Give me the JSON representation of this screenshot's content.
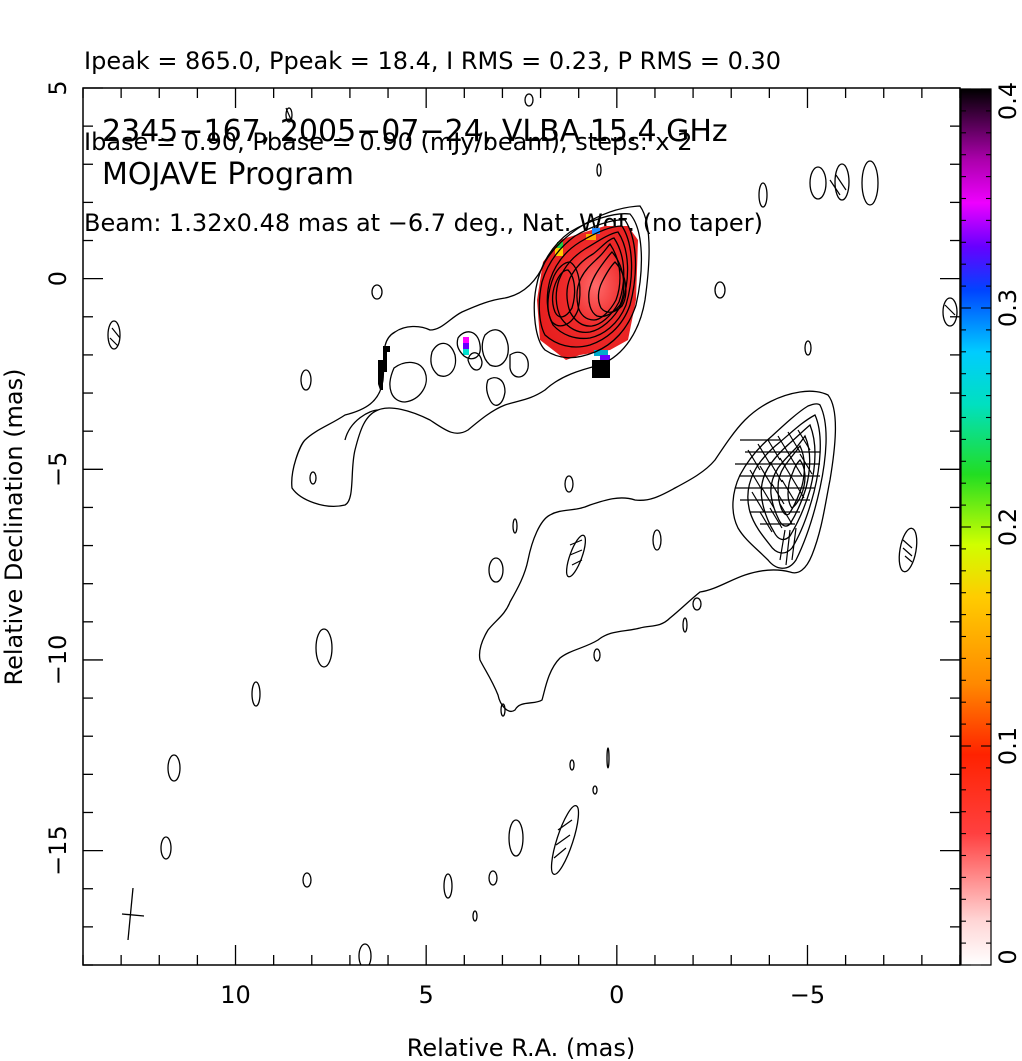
{
  "header": {
    "line1": "Ipeak = 865.0, Ppeak = 18.4, I RMS = 0.23, P RMS = 0.30",
    "line2": "Ibase = 0.90, Pbase = 0.90 (mJy/beam), steps: x 2",
    "line3": "Beam: 1.32x0.48 mas at −6.7 deg., Nat. Wgt. (no taper)"
  },
  "plot_title": {
    "line1": "2345−167, 2005−07−24, VLBA 15.4 GHz",
    "line2": "MOJAVE Program"
  },
  "chart_data": {
    "type": "heatmap",
    "xlabel": "Relative R.A. (mas)",
    "ylabel": "Relative Declination (mas)",
    "xlim": [
      14,
      -9
    ],
    "ylim": [
      -18,
      5
    ],
    "x_reversed": true,
    "xticks": [
      10,
      5,
      0,
      -5
    ],
    "xtick_labels": [
      "10",
      "5",
      "0",
      "−5"
    ],
    "yticks": [
      5,
      0,
      -5,
      -10,
      -15
    ],
    "ytick_labels": [
      "5",
      "0",
      "−5",
      "−10",
      "−15"
    ],
    "colorbar": {
      "range": [
        0,
        0.4
      ],
      "ticks": [
        0,
        0.1,
        0.2,
        0.3,
        0.4
      ],
      "tick_labels": [
        "0",
        "0.1",
        "0.2",
        "0.3",
        "0.4"
      ]
    },
    "core": {
      "x": 0.0,
      "y": 0.0
    },
    "components": [
      {
        "x": 0.0,
        "y": 0.0
      },
      {
        "x": -4.8,
        "y": -5.2
      }
    ],
    "beam": {
      "major": 1.32,
      "minor": 0.48,
      "pa": -6.7,
      "x": 12.6,
      "y": -16.6
    },
    "grid": false
  }
}
